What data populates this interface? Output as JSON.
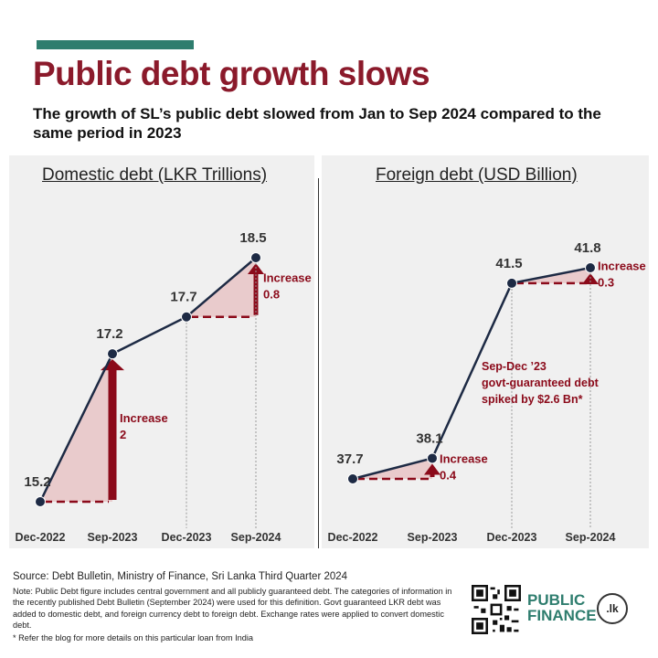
{
  "header": {
    "title": "Public debt growth slows",
    "subtitle": "The growth of SL’s public debt slowed from Jan to Sep 2024 compared to the same period in 2023"
  },
  "colors": {
    "accent": "#2e7d6e",
    "title": "#8b1a2b",
    "arrow": "#8b0a1a",
    "line": "#1d2a44",
    "fill": "#e8c6c8",
    "panel": "#f0f0f0"
  },
  "chart_data": [
    {
      "type": "line",
      "title": "Domestic debt (LKR Trillions)",
      "categories": [
        "Dec-2022",
        "Sep-2023",
        "Dec-2023",
        "Sep-2024"
      ],
      "values": [
        15.2,
        17.2,
        17.7,
        18.5
      ],
      "value_labels": [
        "15.2",
        "17.2",
        "17.7",
        "18.5"
      ],
      "annotations": [
        {
          "from": "Dec-2022",
          "to": "Sep-2023",
          "label": "Increase",
          "value": "2"
        },
        {
          "from": "Dec-2023",
          "to": "Sep-2024",
          "label": "Increase",
          "value": "0.8"
        }
      ],
      "ylim": [
        15.2,
        18.5
      ],
      "grid": false
    },
    {
      "type": "line",
      "title": "Foreign debt (USD Billion)",
      "categories": [
        "Dec-2022",
        "Sep-2023",
        "Dec-2023",
        "Sep-2024"
      ],
      "values": [
        37.7,
        38.1,
        41.5,
        41.8
      ],
      "value_labels": [
        "37.7",
        "38.1",
        "41.5",
        "41.8"
      ],
      "annotations": [
        {
          "from": "Dec-2022",
          "to": "Sep-2023",
          "label": "Increase",
          "value": "0.4"
        },
        {
          "from": "Dec-2023",
          "to": "Sep-2024",
          "label": "Increase",
          "value": "0.3"
        }
      ],
      "callout": [
        "Sep-Dec ’23",
        "govt-guaranteed debt",
        "spiked by $2.6 Bn*"
      ],
      "ylim": [
        37.7,
        41.8
      ],
      "grid": false
    }
  ],
  "footer": {
    "source": "Source: Debt Bulletin, Ministry of Finance, Sri Lanka Third Quarter 2024",
    "note": "Note: Public Debt figure includes central government and all publicly guaranteed debt. The categories of information in the recently published Debt Bulletin (September 2024) were used for this definition. Govt guaranteed LKR debt was added to domestic debt, and foreign currency debt to foreign debt. Exchange  rates were applied to convert domestic debt.",
    "footnote": "* Refer the blog for more details on this particular loan from India"
  },
  "logo": {
    "line1": "PUBLIC",
    "line2": "FINANCE",
    "badge": ".lk"
  }
}
